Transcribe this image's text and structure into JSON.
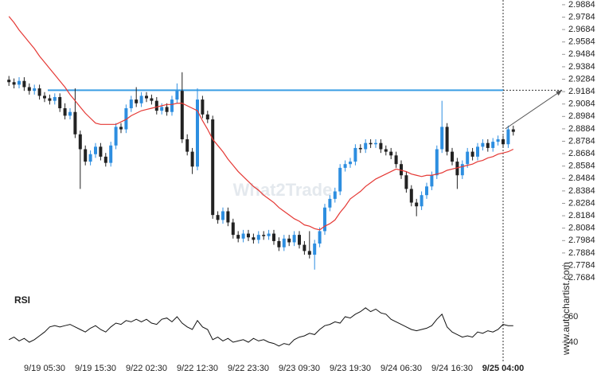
{
  "chart_data": {
    "type": "candlestick",
    "categories": [
      null,
      null,
      null,
      null,
      null,
      null,
      null,
      "9/19 05:30",
      null,
      null,
      null,
      null,
      null,
      null,
      null,
      null,
      null,
      "9/19 15:30",
      null,
      null,
      null,
      null,
      null,
      null,
      null,
      null,
      null,
      "9/22 02:30",
      null,
      null,
      null,
      null,
      null,
      null,
      null,
      null,
      null,
      "9/22 12:30",
      null,
      null,
      null,
      null,
      null,
      null,
      null,
      null,
      null,
      "9/22 23:30",
      null,
      null,
      null,
      null,
      null,
      null,
      null,
      null,
      null,
      "9/23 09:30",
      null,
      null,
      null,
      null,
      null,
      null,
      null,
      null,
      null,
      "9/23 19:30",
      null,
      null,
      null,
      null,
      null,
      null,
      null,
      null,
      null,
      "9/24 06:30",
      null,
      null,
      null,
      null,
      null,
      null,
      null,
      null,
      null,
      "9/24 16:30",
      null,
      null,
      null,
      null,
      null,
      null,
      null,
      null,
      null,
      "9/25 04:00",
      null,
      null
    ],
    "open": [
      2.928,
      2.926,
      2.924,
      2.927,
      2.922,
      2.919,
      2.921,
      2.915,
      2.913,
      2.911,
      2.914,
      2.905,
      2.899,
      2.902,
      2.884,
      2.872,
      2.862,
      2.868,
      2.874,
      2.866,
      2.861,
      2.875,
      2.89,
      2.888,
      2.905,
      2.912,
      2.909,
      2.915,
      2.913,
      2.911,
      2.903,
      2.906,
      2.902,
      2.912,
      2.919,
      2.88,
      2.87,
      2.858,
      2.912,
      2.9,
      2.896,
      2.819,
      2.815,
      2.822,
      2.813,
      2.803,
      2.8,
      2.804,
      2.801,
      2.799,
      2.803,
      2.802,
      2.804,
      2.798,
      2.793,
      2.8,
      2.797,
      2.803,
      2.795,
      2.79,
      2.787,
      2.796,
      2.806,
      2.825,
      2.832,
      2.838,
      2.857,
      2.86,
      2.862,
      2.873,
      2.872,
      2.877,
      2.876,
      2.877,
      2.872,
      2.87,
      2.867,
      2.86,
      2.851,
      2.84,
      2.829,
      2.826,
      2.835,
      2.842,
      2.851,
      2.872,
      2.89,
      2.87,
      2.862,
      2.851,
      2.86,
      2.87,
      2.866,
      2.874,
      2.877,
      2.873,
      2.878,
      2.88,
      2.876,
      2.888
    ],
    "high": [
      2.931,
      2.929,
      2.93,
      2.93,
      2.925,
      2.924,
      2.924,
      2.918,
      2.916,
      2.917,
      2.917,
      2.909,
      2.905,
      2.921,
      2.887,
      2.875,
      2.871,
      2.877,
      2.877,
      2.869,
      2.878,
      2.893,
      2.893,
      2.908,
      2.915,
      2.922,
      2.918,
      2.918,
      2.916,
      2.914,
      2.909,
      2.909,
      2.915,
      2.925,
      2.934,
      2.884,
      2.873,
      2.921,
      2.915,
      2.903,
      2.899,
      2.822,
      2.825,
      2.825,
      2.816,
      2.806,
      2.807,
      2.807,
      2.804,
      2.806,
      2.806,
      2.807,
      2.807,
      2.801,
      2.803,
      2.803,
      2.806,
      2.806,
      2.798,
      2.806,
      2.799,
      2.809,
      2.828,
      2.835,
      2.841,
      2.86,
      2.863,
      2.865,
      2.876,
      2.876,
      2.88,
      2.88,
      2.88,
      2.88,
      2.875,
      2.873,
      2.87,
      2.863,
      2.854,
      2.843,
      2.832,
      2.838,
      2.845,
      2.854,
      2.875,
      2.911,
      2.893,
      2.873,
      2.865,
      2.863,
      2.873,
      2.873,
      2.877,
      2.88,
      2.88,
      2.881,
      2.883,
      2.883,
      2.891,
      2.891
    ],
    "low": [
      2.923,
      2.921,
      2.921,
      2.919,
      2.916,
      2.916,
      2.912,
      2.91,
      2.908,
      2.908,
      2.902,
      2.896,
      2.896,
      2.881,
      2.84,
      2.859,
      2.859,
      2.865,
      2.863,
      2.858,
      2.858,
      2.872,
      2.885,
      2.885,
      2.902,
      2.906,
      2.906,
      2.91,
      2.908,
      2.9,
      2.9,
      2.899,
      2.899,
      2.909,
      2.877,
      2.867,
      2.852,
      2.855,
      2.897,
      2.893,
      2.816,
      2.812,
      2.812,
      2.81,
      2.8,
      2.797,
      2.797,
      2.798,
      2.796,
      2.796,
      2.799,
      2.799,
      2.795,
      2.79,
      2.79,
      2.794,
      2.794,
      2.792,
      2.787,
      2.784,
      2.775,
      2.793,
      2.803,
      2.822,
      2.829,
      2.835,
      2.854,
      2.857,
      2.859,
      2.869,
      2.869,
      2.873,
      2.873,
      2.869,
      2.867,
      2.864,
      2.857,
      2.848,
      2.837,
      2.826,
      2.818,
      2.823,
      2.832,
      2.839,
      2.848,
      2.869,
      2.867,
      2.859,
      2.84,
      2.848,
      2.857,
      2.863,
      2.863,
      2.871,
      2.87,
      2.87,
      2.875,
      2.873,
      2.873,
      2.883
    ],
    "close": [
      2.926,
      2.924,
      2.927,
      2.922,
      2.919,
      2.921,
      2.915,
      2.913,
      2.911,
      2.914,
      2.905,
      2.899,
      2.902,
      2.884,
      2.872,
      2.862,
      2.868,
      2.874,
      2.866,
      2.861,
      2.875,
      2.89,
      2.888,
      2.905,
      2.912,
      2.909,
      2.915,
      2.913,
      2.911,
      2.903,
      2.906,
      2.902,
      2.912,
      2.919,
      2.88,
      2.87,
      2.858,
      2.912,
      2.9,
      2.896,
      2.819,
      2.815,
      2.822,
      2.813,
      2.803,
      2.8,
      2.804,
      2.801,
      2.799,
      2.803,
      2.802,
      2.804,
      2.798,
      2.793,
      2.8,
      2.797,
      2.803,
      2.795,
      2.79,
      2.787,
      2.796,
      2.806,
      2.825,
      2.832,
      2.838,
      2.857,
      2.86,
      2.862,
      2.873,
      2.872,
      2.877,
      2.876,
      2.877,
      2.872,
      2.87,
      2.867,
      2.86,
      2.851,
      2.84,
      2.829,
      2.826,
      2.835,
      2.842,
      2.851,
      2.872,
      2.89,
      2.87,
      2.862,
      2.851,
      2.86,
      2.87,
      2.866,
      2.874,
      2.877,
      2.873,
      2.878,
      2.88,
      2.876,
      2.888,
      2.886
    ],
    "up_color": "#2d8ee0",
    "down_color": "#222222",
    "moving_average": {
      "color": "#e53935",
      "values": [
        2.979,
        2.974,
        2.968,
        2.963,
        2.958,
        2.953,
        2.947,
        2.942,
        2.937,
        2.932,
        2.927,
        2.922,
        2.916,
        2.911,
        2.906,
        2.901,
        2.897,
        2.893,
        2.892,
        2.892,
        2.892,
        2.892,
        2.894,
        2.896,
        2.899,
        2.901,
        2.903,
        2.904,
        2.905,
        2.906,
        2.907,
        2.908,
        2.908,
        2.909,
        2.909,
        2.907,
        2.905,
        2.903,
        2.895,
        2.888,
        2.88,
        2.875,
        2.87,
        2.864,
        2.859,
        2.854,
        2.85,
        2.846,
        2.842,
        2.839,
        2.835,
        2.832,
        2.829,
        2.825,
        2.822,
        2.819,
        2.816,
        2.814,
        2.811,
        2.81,
        2.808,
        2.807,
        2.81,
        2.812,
        2.815,
        2.821,
        2.826,
        2.832,
        2.835,
        2.838,
        2.842,
        2.845,
        2.848,
        2.85,
        2.852,
        2.854,
        2.856,
        2.855,
        2.854,
        2.852,
        2.851,
        2.85,
        2.851,
        2.851,
        2.852,
        2.853,
        2.855,
        2.856,
        2.857,
        2.858,
        2.859,
        2.86,
        2.862,
        2.863,
        2.865,
        2.866,
        2.868,
        2.869,
        2.87,
        2.872
      ]
    },
    "resistance_level": 2.9195,
    "resistance_color": "#3a9ee4",
    "ylim": [
      2.7614,
      2.9922
    ],
    "yticks": [
      2.9884,
      2.9784,
      2.9684,
      2.9584,
      2.9484,
      2.9384,
      2.9284,
      2.9184,
      2.9084,
      2.8984,
      2.8884,
      2.8784,
      2.8684,
      2.8584,
      2.8484,
      2.8384,
      2.8284,
      2.8184,
      2.8084,
      2.7984,
      2.7884,
      2.7784,
      2.7684
    ],
    "grid": false,
    "rsi": {
      "label": "RSI",
      "color": "#111111",
      "ylim": [
        27.5,
        77.5
      ],
      "yticks": [
        60,
        40
      ],
      "values": [
        42,
        44,
        41,
        43,
        40,
        42,
        45,
        48,
        52,
        53,
        52,
        53,
        54,
        52,
        50,
        48,
        51,
        53,
        50,
        48,
        52,
        55,
        54,
        57,
        56,
        58,
        56,
        58,
        55,
        54,
        58,
        59,
        56,
        60,
        55,
        52,
        50,
        57,
        52,
        50,
        42,
        44,
        41,
        43,
        40,
        41,
        42,
        40,
        43,
        41,
        42,
        40,
        39,
        37,
        39,
        38,
        42,
        44,
        45,
        47,
        46,
        50,
        53,
        54,
        56,
        55,
        60,
        59,
        62,
        64,
        67,
        64,
        66,
        63,
        62,
        58,
        56,
        54,
        52,
        50,
        49,
        50,
        51,
        53,
        58,
        62,
        52,
        48,
        46,
        44,
        45,
        44,
        48,
        47,
        49,
        48,
        50,
        54,
        53,
        53
      ]
    },
    "watermark": "What2Trade",
    "source": "www.autochartist.com"
  }
}
